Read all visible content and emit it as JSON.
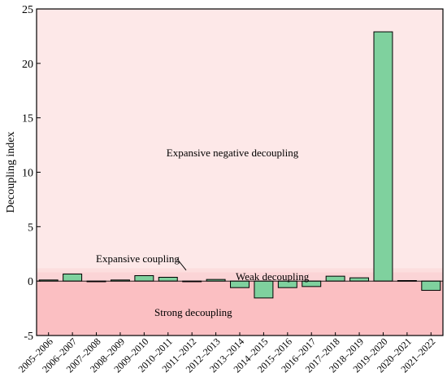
{
  "chart_data": {
    "type": "bar",
    "ylabel": "Decoupling index",
    "xlabel": "",
    "title": "",
    "ylim": [
      -5,
      25
    ],
    "yticks": [
      -5,
      0,
      5,
      10,
      15,
      20,
      25
    ],
    "grid": false,
    "legend": "none",
    "categories": [
      "2005–2006",
      "2006–2007",
      "2007–2008",
      "2008–2009",
      "2009–2010",
      "2010–2011",
      "2011–2012",
      "2012–2013",
      "2013–2014",
      "2014–2015",
      "2015–2016",
      "2016–2017",
      "2017–2018",
      "2018–2019",
      "2019–2020",
      "2020–2021",
      "2021–2022"
    ],
    "values": [
      0.1,
      0.65,
      0.0,
      0.1,
      0.5,
      0.35,
      0.0,
      0.15,
      -0.6,
      -1.55,
      -0.6,
      -0.5,
      0.45,
      0.3,
      22.9,
      0.05,
      -0.85
    ],
    "bar_color": "#7fd19e",
    "regions": [
      {
        "label": "Expansive negative decoupling",
        "from": 1.2,
        "to": 25,
        "color": "#fde8e8"
      },
      {
        "label": "Expansive  coupling",
        "from": 0.8,
        "to": 1.2,
        "color": "#fcdede"
      },
      {
        "label": "Weak  decoupling",
        "from": 0,
        "to": 0.8,
        "color": "#fbd4d6"
      },
      {
        "label": "Strong  decoupling",
        "from": -5,
        "to": 0,
        "color": "#fbbfc2"
      }
    ]
  }
}
